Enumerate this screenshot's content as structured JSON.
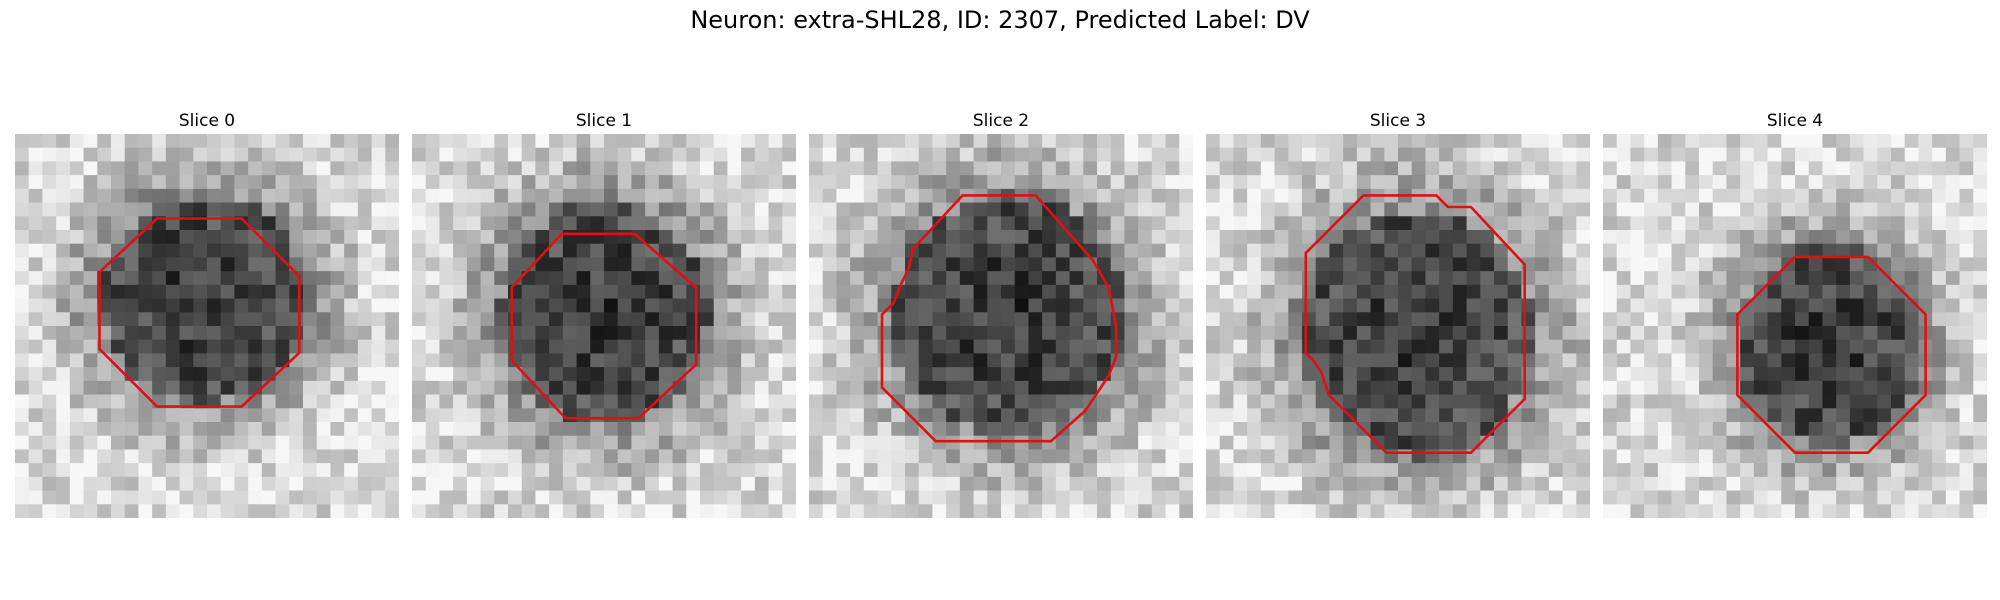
{
  "figure": {
    "title": "Neuron: extra-SHL28, ID: 2307, Predicted Label: DV"
  },
  "colors": {
    "contour": "#e01010"
  },
  "slices": [
    {
      "label": "Slice 0",
      "seed": 11,
      "blob": [
        0.49,
        0.43,
        0.27,
        0.27
      ],
      "contour": [
        [
          0.37,
          0.22
        ],
        [
          0.59,
          0.22
        ],
        [
          0.74,
          0.37
        ],
        [
          0.74,
          0.57
        ],
        [
          0.59,
          0.71
        ],
        [
          0.37,
          0.71
        ],
        [
          0.22,
          0.56
        ],
        [
          0.22,
          0.36
        ]
      ]
    },
    {
      "label": "Slice 1",
      "seed": 23,
      "blob": [
        0.5,
        0.47,
        0.27,
        0.29
      ],
      "contour": [
        [
          0.39,
          0.26
        ],
        [
          0.58,
          0.26
        ],
        [
          0.74,
          0.4
        ],
        [
          0.74,
          0.6
        ],
        [
          0.59,
          0.74
        ],
        [
          0.4,
          0.74
        ],
        [
          0.26,
          0.59
        ],
        [
          0.26,
          0.4
        ]
      ]
    },
    {
      "label": "Slice 2",
      "seed": 37,
      "blob": [
        0.52,
        0.47,
        0.3,
        0.31
      ],
      "contour": [
        [
          0.4,
          0.16
        ],
        [
          0.59,
          0.16
        ],
        [
          0.74,
          0.33
        ],
        [
          0.78,
          0.4
        ],
        [
          0.8,
          0.5
        ],
        [
          0.8,
          0.58
        ],
        [
          0.78,
          0.63
        ],
        [
          0.72,
          0.72
        ],
        [
          0.63,
          0.8
        ],
        [
          0.33,
          0.8
        ],
        [
          0.19,
          0.66
        ],
        [
          0.19,
          0.47
        ],
        [
          0.22,
          0.44
        ],
        [
          0.24,
          0.39
        ],
        [
          0.26,
          0.35
        ],
        [
          0.27,
          0.3
        ]
      ]
    },
    {
      "label": "Slice 3",
      "seed": 49,
      "blob": [
        0.55,
        0.52,
        0.3,
        0.32
      ],
      "contour": [
        [
          0.41,
          0.16
        ],
        [
          0.6,
          0.16
        ],
        [
          0.63,
          0.19
        ],
        [
          0.69,
          0.19
        ],
        [
          0.83,
          0.34
        ],
        [
          0.83,
          0.69
        ],
        [
          0.69,
          0.83
        ],
        [
          0.47,
          0.83
        ],
        [
          0.32,
          0.68
        ],
        [
          0.3,
          0.62
        ],
        [
          0.28,
          0.59
        ],
        [
          0.26,
          0.57
        ],
        [
          0.26,
          0.31
        ]
      ]
    },
    {
      "label": "Slice 4",
      "seed": 61,
      "blob": [
        0.59,
        0.55,
        0.24,
        0.26
      ],
      "contour": [
        [
          0.5,
          0.32
        ],
        [
          0.69,
          0.32
        ],
        [
          0.84,
          0.47
        ],
        [
          0.84,
          0.68
        ],
        [
          0.69,
          0.83
        ],
        [
          0.5,
          0.83
        ],
        [
          0.35,
          0.68
        ],
        [
          0.35,
          0.47
        ]
      ]
    }
  ]
}
